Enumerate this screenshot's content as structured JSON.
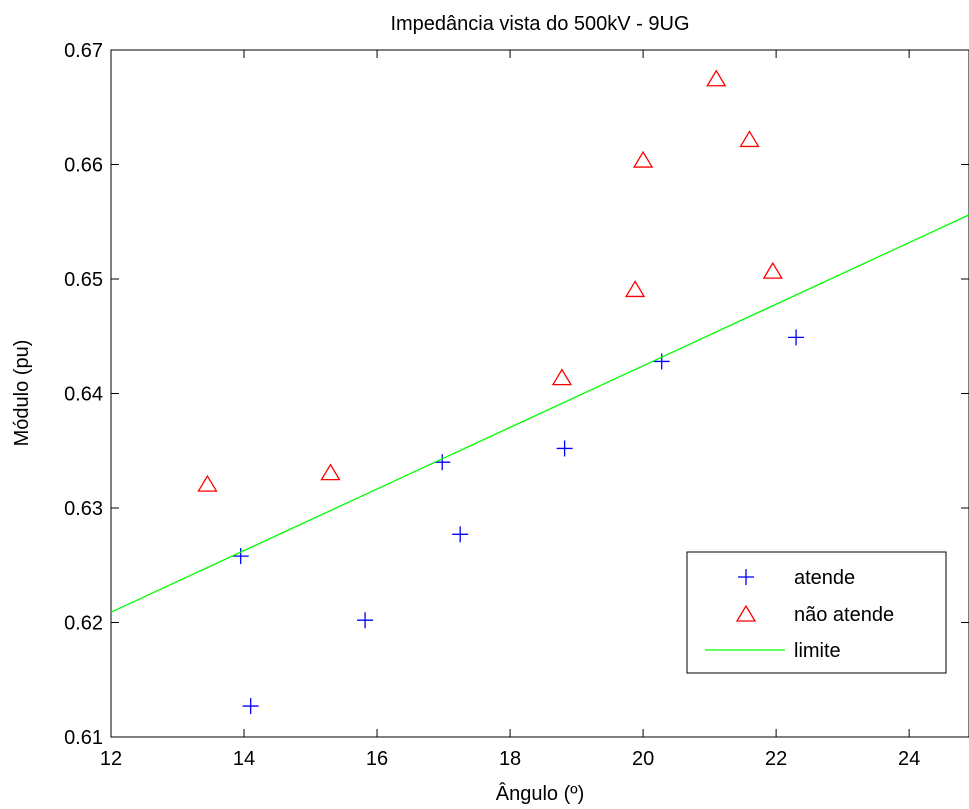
{
  "chart_data": {
    "type": "scatter",
    "title": "Impedância vista do 500kV - 9UG",
    "xlabel": "Ângulo (º)",
    "ylabel": "Módulo (pu)",
    "xlim": [
      12,
      24.9
    ],
    "ylim": [
      0.61,
      0.67
    ],
    "xticks": [
      12,
      14,
      16,
      18,
      20,
      22,
      24
    ],
    "yticks": [
      0.61,
      0.62,
      0.63,
      0.64,
      0.65,
      0.66,
      0.67
    ],
    "xtick_labels": [
      "12",
      "14",
      "16",
      "18",
      "20",
      "22",
      "24"
    ],
    "ytick_labels": [
      "0.61",
      "0.62",
      "0.63",
      "0.64",
      "0.65",
      "0.66",
      "0.67"
    ],
    "grid": false,
    "legend_position": "bottom-right",
    "series": [
      {
        "name": "atende",
        "marker": "plus",
        "color": "#0000ff",
        "points": [
          [
            13.95,
            0.6258
          ],
          [
            14.1,
            0.6127
          ],
          [
            15.82,
            0.6202
          ],
          [
            16.98,
            0.634
          ],
          [
            17.25,
            0.6277
          ],
          [
            18.82,
            0.6352
          ],
          [
            20.28,
            0.6428
          ],
          [
            22.3,
            0.6449
          ]
        ]
      },
      {
        "name": "não atende",
        "marker": "triangle",
        "color": "#ff0000",
        "points": [
          [
            13.45,
            0.632
          ],
          [
            15.3,
            0.633
          ],
          [
            18.78,
            0.6413
          ],
          [
            19.88,
            0.649
          ],
          [
            20.0,
            0.6603
          ],
          [
            21.1,
            0.6674
          ],
          [
            21.6,
            0.6621
          ],
          [
            21.95,
            0.6506
          ]
        ]
      },
      {
        "name": "limite",
        "marker": "line",
        "color": "#00ff00",
        "points": [
          [
            12,
            0.6209
          ],
          [
            24.9,
            0.6556
          ]
        ]
      }
    ]
  }
}
